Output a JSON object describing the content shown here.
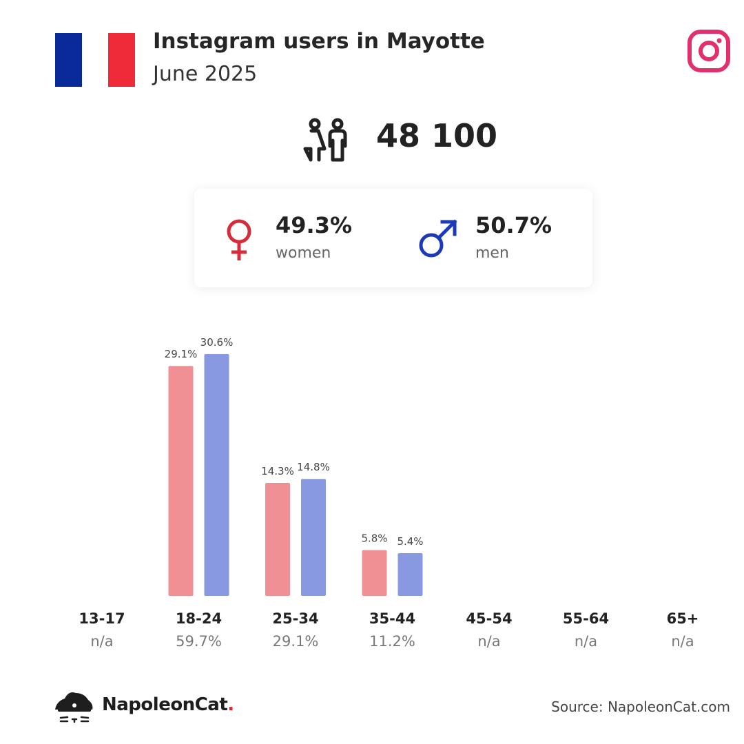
{
  "header": {
    "title": "Instagram users in Mayotte",
    "subtitle": "June 2025",
    "flag_colors": [
      "#0b2a9a",
      "#ffffff",
      "#ef2b3a"
    ],
    "platform_icon": "instagram-icon",
    "platform_color": "#e1306c"
  },
  "total": {
    "icon": "people-icon",
    "value": "48 100"
  },
  "gender": {
    "women": {
      "icon": "female-symbol-icon",
      "value": "49.3%",
      "label": "women",
      "color": "#d62b3a"
    },
    "men": {
      "icon": "male-symbol-icon",
      "value": "50.7%",
      "label": "men",
      "color": "#1c3ab8"
    }
  },
  "chart_data": {
    "type": "bar",
    "categories": [
      "13-17",
      "18-24",
      "25-34",
      "35-44",
      "45-54",
      "55-64",
      "65+"
    ],
    "category_totals": [
      "n/a",
      "59.7%",
      "29.1%",
      "11.2%",
      "n/a",
      "n/a",
      "n/a"
    ],
    "series": [
      {
        "values": [
          null,
          29.1,
          14.3,
          5.8,
          null,
          null,
          null
        ],
        "labels": [
          "",
          "29.1%",
          "14.3%",
          "5.8%",
          "",
          "",
          ""
        ],
        "color": "#f09095"
      },
      {
        "values": [
          null,
          30.6,
          14.8,
          5.4,
          null,
          null,
          null
        ],
        "labels": [
          "",
          "30.6%",
          "14.8%",
          "5.4%",
          "",
          "",
          ""
        ],
        "color": "#8899e2"
      }
    ],
    "ylim": [
      0,
      30.6
    ],
    "grid": false,
    "legend": "none"
  },
  "footer": {
    "brand": "NapoleonCat",
    "brand_dot": ".",
    "brand_icon": "napoleoncat-logo-icon",
    "source": "Source: NapoleonCat.com"
  }
}
